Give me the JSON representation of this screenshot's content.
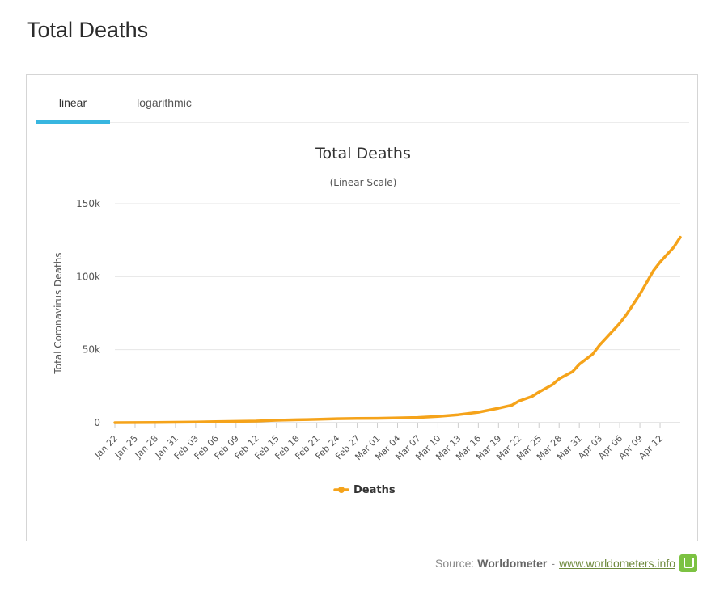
{
  "page": {
    "title": "Total Deaths"
  },
  "tabs": [
    {
      "label": "linear",
      "active": true
    },
    {
      "label": "logarithmic",
      "active": false
    }
  ],
  "source": {
    "prefix": "Source:",
    "name": "Worldometer",
    "separator": "-",
    "link_text": "www.worldometers.info",
    "logo_icon": "worldometer-logo-icon"
  },
  "colors": {
    "series": "#f5a31a",
    "tab_active": "#38b6e0",
    "grid": "#e6e6e6"
  },
  "chart_data": {
    "type": "line",
    "title": "Total Deaths",
    "subtitle": "(Linear Scale)",
    "xlabel": "",
    "ylabel": "Total Coronavirus Deaths",
    "ylim": [
      0,
      150000
    ],
    "yticks": [
      0,
      50000,
      100000,
      150000
    ],
    "ytick_labels": [
      "0",
      "50k",
      "100k",
      "150k"
    ],
    "grid": true,
    "legend": "bottom-center",
    "x_tick_labels": [
      "Jan 22",
      "Jan 25",
      "Jan 28",
      "Jan 31",
      "Feb 03",
      "Feb 06",
      "Feb 09",
      "Feb 12",
      "Feb 15",
      "Feb 18",
      "Feb 21",
      "Feb 24",
      "Feb 27",
      "Mar 01",
      "Mar 04",
      "Mar 07",
      "Mar 10",
      "Mar 13",
      "Mar 16",
      "Mar 19",
      "Mar 22",
      "Mar 25",
      "Mar 28",
      "Mar 31",
      "Apr 03",
      "Apr 06",
      "Apr 09",
      "Apr 12"
    ],
    "x_start": "Jan 22",
    "x_end": "Apr 15",
    "series": [
      {
        "name": "Deaths",
        "color": "#f5a31a",
        "x": [
          "Jan 22",
          "Jan 25",
          "Jan 28",
          "Jan 31",
          "Feb 03",
          "Feb 06",
          "Feb 09",
          "Feb 12",
          "Feb 15",
          "Feb 18",
          "Feb 21",
          "Feb 24",
          "Feb 27",
          "Mar 01",
          "Mar 04",
          "Mar 07",
          "Mar 10",
          "Mar 13",
          "Mar 16",
          "Mar 19",
          "Mar 21",
          "Mar 22",
          "Mar 24",
          "Mar 25",
          "Mar 27",
          "Mar 28",
          "Mar 30",
          "Mar 31",
          "Apr 02",
          "Apr 03",
          "Apr 04",
          "Apr 05",
          "Apr 06",
          "Apr 07",
          "Apr 08",
          "Apr 09",
          "Apr 10",
          "Apr 11",
          "Apr 12",
          "Apr 13",
          "Apr 14",
          "Apr 15"
        ],
        "values": [
          17,
          56,
          132,
          259,
          427,
          638,
          908,
          1114,
          1666,
          2004,
          2250,
          2701,
          2868,
          2996,
          3254,
          3558,
          4290,
          5430,
          7140,
          9900,
          12000,
          14700,
          18000,
          21000,
          26000,
          30000,
          35000,
          40000,
          47000,
          53000,
          58000,
          63000,
          68000,
          74000,
          81000,
          88000,
          96000,
          104000,
          110000,
          115000,
          120000,
          127000
        ]
      }
    ]
  }
}
